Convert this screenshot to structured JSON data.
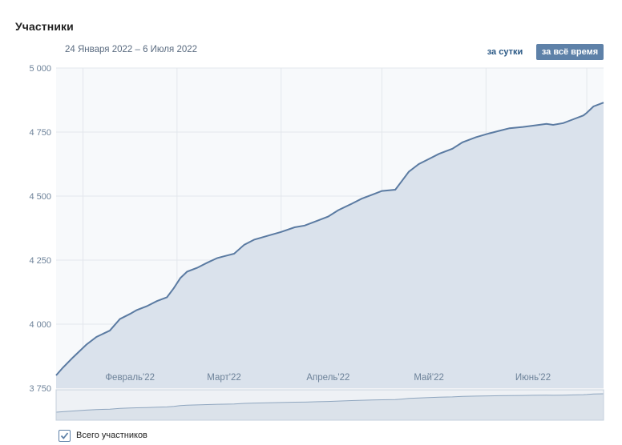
{
  "header": {
    "title": "Участники",
    "date_range": "24 Января 2022 – 6 Июля 2022",
    "btn_day": "за сутки",
    "btn_all": "за всё время"
  },
  "legend": {
    "label": "Всего участников",
    "checked": true
  },
  "colors": {
    "line": "#5b7ba2",
    "fill": "#dae2ec",
    "grid": "#e3e7ec",
    "tick": "#6d8299",
    "accent": "#5e81a8"
  },
  "chart_data": {
    "type": "area",
    "title": "Участники",
    "ylim": [
      3750,
      5000
    ],
    "yticks": [
      3750,
      4000,
      4250,
      4500,
      4750,
      5000
    ],
    "ytick_labels": [
      "3 750",
      "4 000",
      "4 250",
      "4 500",
      "4 750",
      "5 000"
    ],
    "xlim": [
      "2022-01-24",
      "2022-07-06"
    ],
    "xticks": [
      {
        "date": "2022-02-15",
        "label": "Февраль'22"
      },
      {
        "date": "2022-03-15",
        "label": "Март'22"
      },
      {
        "date": "2022-04-15",
        "label": "Апрель'22"
      },
      {
        "date": "2022-05-15",
        "label": "Май'22"
      },
      {
        "date": "2022-06-15",
        "label": "Июнь'22"
      }
    ],
    "series": [
      {
        "name": "Всего участников",
        "points": [
          [
            "2022-01-24",
            3800
          ],
          [
            "2022-01-26",
            3830
          ],
          [
            "2022-01-29",
            3870
          ],
          [
            "2022-02-02",
            3920
          ],
          [
            "2022-02-05",
            3950
          ],
          [
            "2022-02-09",
            3975
          ],
          [
            "2022-02-12",
            4020
          ],
          [
            "2022-02-15",
            4040
          ],
          [
            "2022-02-17",
            4055
          ],
          [
            "2022-02-20",
            4070
          ],
          [
            "2022-02-23",
            4090
          ],
          [
            "2022-02-26",
            4105
          ],
          [
            "2022-02-28",
            4140
          ],
          [
            "2022-03-02",
            4180
          ],
          [
            "2022-03-04",
            4205
          ],
          [
            "2022-03-07",
            4220
          ],
          [
            "2022-03-10",
            4240
          ],
          [
            "2022-03-13",
            4258
          ],
          [
            "2022-03-15",
            4265
          ],
          [
            "2022-03-18",
            4275
          ],
          [
            "2022-03-21",
            4310
          ],
          [
            "2022-03-24",
            4330
          ],
          [
            "2022-03-28",
            4345
          ],
          [
            "2022-04-01",
            4360
          ],
          [
            "2022-04-05",
            4378
          ],
          [
            "2022-04-08",
            4385
          ],
          [
            "2022-04-12",
            4405
          ],
          [
            "2022-04-15",
            4420
          ],
          [
            "2022-04-18",
            4445
          ],
          [
            "2022-04-22",
            4470
          ],
          [
            "2022-04-25",
            4490
          ],
          [
            "2022-04-28",
            4505
          ],
          [
            "2022-05-01",
            4520
          ],
          [
            "2022-05-05",
            4525
          ],
          [
            "2022-05-07",
            4560
          ],
          [
            "2022-05-09",
            4595
          ],
          [
            "2022-05-12",
            4625
          ],
          [
            "2022-05-15",
            4645
          ],
          [
            "2022-05-18",
            4665
          ],
          [
            "2022-05-22",
            4685
          ],
          [
            "2022-05-25",
            4710
          ],
          [
            "2022-05-29",
            4730
          ],
          [
            "2022-06-02",
            4745
          ],
          [
            "2022-06-05",
            4755
          ],
          [
            "2022-06-08",
            4765
          ],
          [
            "2022-06-12",
            4770
          ],
          [
            "2022-06-15",
            4775
          ],
          [
            "2022-06-19",
            4782
          ],
          [
            "2022-06-21",
            4778
          ],
          [
            "2022-06-24",
            4785
          ],
          [
            "2022-06-27",
            4800
          ],
          [
            "2022-06-30",
            4815
          ],
          [
            "2022-07-01",
            4825
          ],
          [
            "2022-07-03",
            4850
          ],
          [
            "2022-07-06",
            4865
          ]
        ]
      }
    ],
    "grid": true,
    "legend_position": "bottom-left"
  }
}
